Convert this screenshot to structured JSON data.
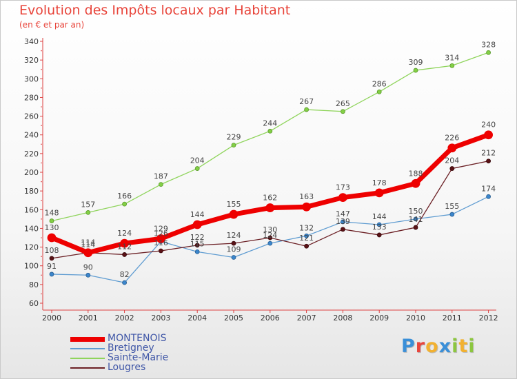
{
  "title": "Evolution des Impôts locaux par Habitant",
  "subtitle": "(en € et par an)",
  "chart_data": {
    "type": "line",
    "title": "Evolution des Impôts locaux par Habitant",
    "subtitle": "(en € et par an)",
    "xlabel": "",
    "ylabel": "",
    "categories": [
      "2000",
      "2001",
      "2002",
      "2003",
      "2004",
      "2005",
      "2006",
      "2007",
      "2008",
      "2009",
      "2010",
      "2011",
      "2012"
    ],
    "ylim": [
      60,
      340
    ],
    "yticks": [
      60,
      80,
      100,
      120,
      140,
      160,
      180,
      200,
      220,
      240,
      260,
      280,
      300,
      320,
      340
    ],
    "grid": false,
    "legend_position": "bottom-left",
    "series": [
      {
        "name": "MONTENOIS",
        "color": "#ee0000",
        "values": [
          130,
          114,
          124,
          129,
          144,
          155,
          162,
          163,
          173,
          178,
          188,
          226,
          240
        ]
      },
      {
        "name": "Bretigney",
        "color": "#5f9cd1",
        "values": [
          91,
          90,
          82,
          126,
          115,
          109,
          124,
          132,
          147,
          144,
          150,
          155,
          174
        ]
      },
      {
        "name": "Sainte-Marie",
        "color": "#8fd45b",
        "values": [
          148,
          157,
          166,
          187,
          204,
          229,
          244,
          267,
          265,
          286,
          309,
          314,
          328
        ]
      },
      {
        "name": "Lougres",
        "color": "#6b1f24",
        "values": [
          108,
          114,
          112,
          116,
          122,
          124,
          130,
          121,
          139,
          133,
          141,
          204,
          212
        ]
      }
    ]
  },
  "logo": {
    "letters": [
      {
        "char": "P",
        "color": "#3a8fd8"
      },
      {
        "char": "r",
        "color": "#e8453c"
      },
      {
        "char": "o",
        "color": "#f2b130"
      },
      {
        "char": "x",
        "color": "#3a8fd8"
      },
      {
        "char": "i",
        "color": "#8cc63f"
      },
      {
        "char": "t",
        "color": "#f2b130"
      },
      {
        "char": "i",
        "color": "#8cc63f"
      }
    ]
  }
}
